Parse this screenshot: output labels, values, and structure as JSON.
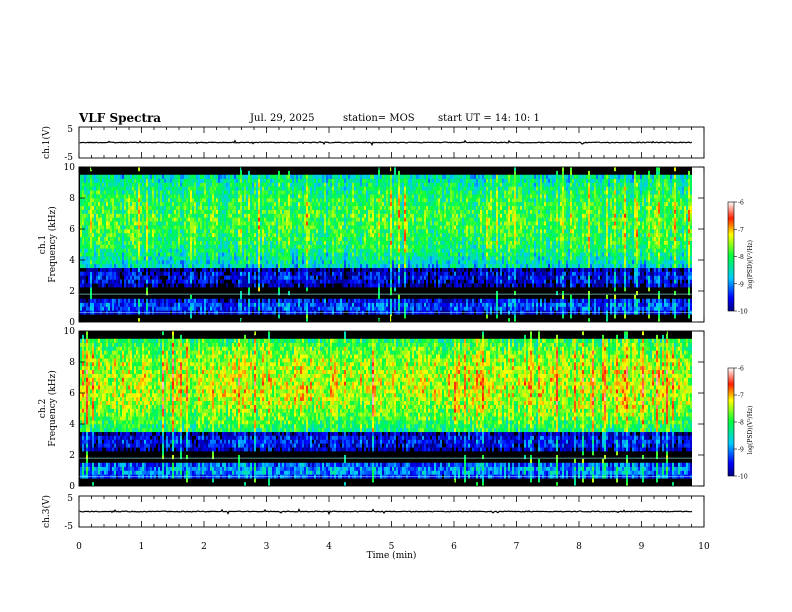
{
  "header": {
    "title": "VLF Spectra",
    "date": "Jul. 29, 2025",
    "station": "station= MOS",
    "start": "start UT =  14: 10: 1"
  },
  "chart_data": [
    {
      "id": "ch1-waveform",
      "type": "line",
      "ylabel": "ch.1(V)",
      "ylim": [
        -5,
        5
      ],
      "yticks": [
        "5",
        "-5"
      ],
      "xlim": [
        0,
        10
      ],
      "description_values": {
        "baseline_v": 0
      }
    },
    {
      "id": "ch1-spectrogram",
      "type": "heatmap",
      "ylabel_top": "ch.1",
      "ylabel": "Frequency (kHz)",
      "ylim": [
        0,
        10
      ],
      "yticks": [
        "0",
        "2",
        "4",
        "6",
        "8",
        "10"
      ],
      "xlim": [
        0,
        10
      ],
      "colorbar": {
        "label": "log(PSD)(V²/Hz)",
        "range": [
          -10,
          -6
        ],
        "ticks": [
          "-6",
          "-7",
          "-8",
          "-9",
          "-10"
        ]
      },
      "bands_khz": [
        {
          "from": 0.3,
          "to": 1.5,
          "level": -9.3
        },
        {
          "from": 2.0,
          "to": 3.5,
          "level": -9.6
        },
        {
          "from": 3.5,
          "to": 9.5,
          "level": -7.9
        }
      ]
    },
    {
      "id": "ch2-spectrogram",
      "type": "heatmap",
      "ylabel_top": "ch.2",
      "ylabel": "Frequency (kHz)",
      "ylim": [
        0,
        10
      ],
      "yticks": [
        "0",
        "2",
        "4",
        "6",
        "8",
        "10"
      ],
      "xlim": [
        0,
        10
      ],
      "colorbar": {
        "label": "log(PSD)(V²/Hz)",
        "range": [
          -10,
          -6
        ],
        "ticks": [
          "-6",
          "-7",
          "-8",
          "-9",
          "-10"
        ]
      },
      "bands_khz": [
        {
          "from": 0.3,
          "to": 1.5,
          "level": -9.0
        },
        {
          "from": 2.0,
          "to": 3.5,
          "level": -9.5
        },
        {
          "from": 3.5,
          "to": 9.5,
          "level": -7.4
        }
      ]
    },
    {
      "id": "ch3-waveform",
      "type": "line",
      "ylabel": "ch.3(V)",
      "ylim": [
        -5,
        5
      ],
      "yticks": [
        "5",
        "-5"
      ],
      "xlim": [
        0,
        10
      ],
      "description_values": {
        "baseline_v": 0
      }
    }
  ],
  "xaxis": {
    "label": "Time (min)",
    "ticks": [
      "0",
      "1",
      "2",
      "3",
      "4",
      "5",
      "6",
      "7",
      "8",
      "9",
      "10"
    ]
  }
}
